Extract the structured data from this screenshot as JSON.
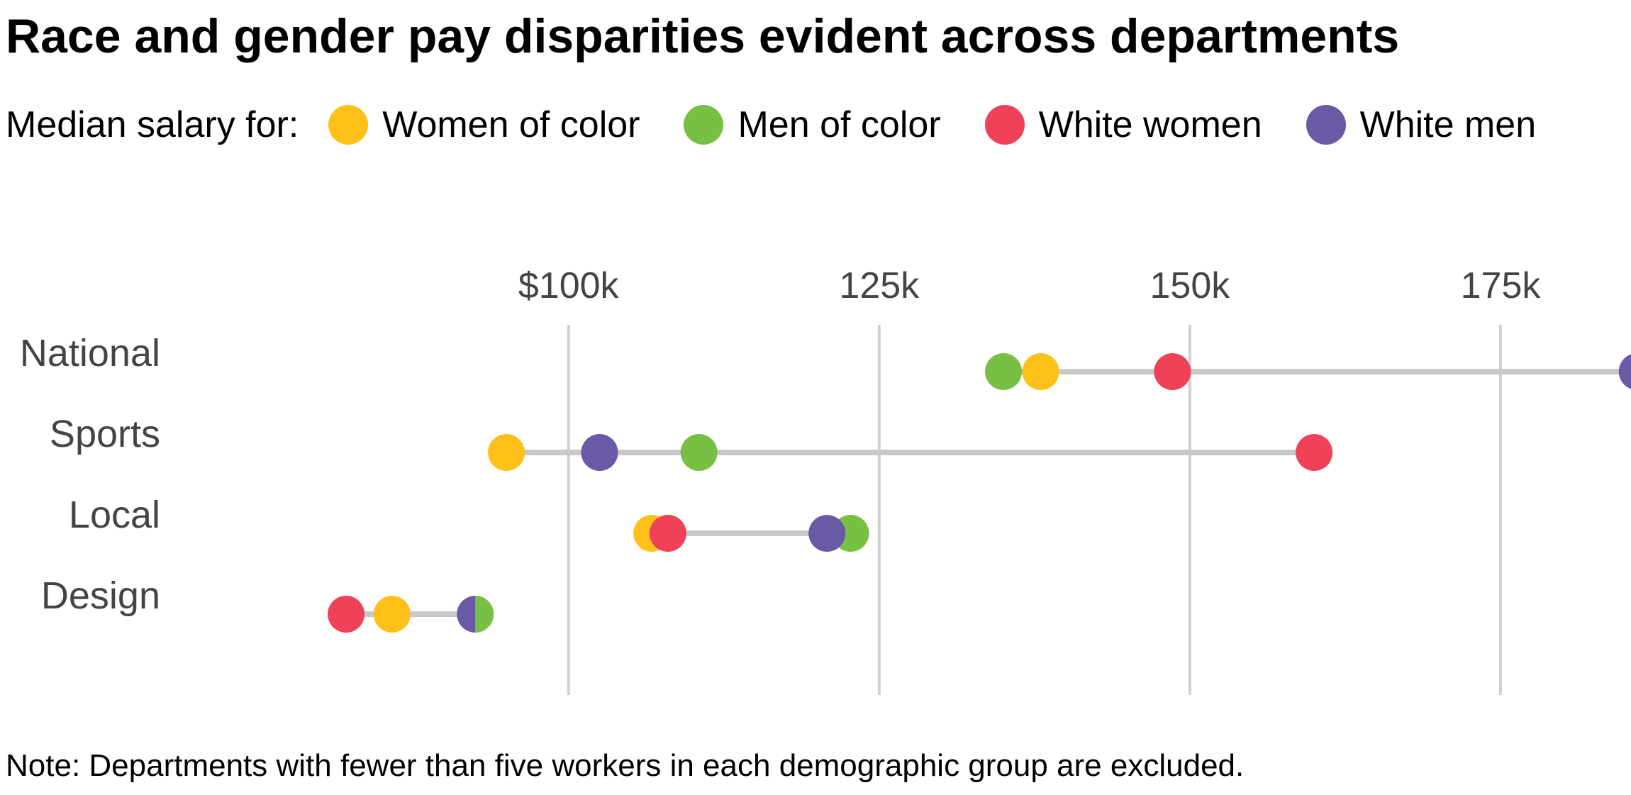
{
  "chart_data": {
    "type": "dot-plot",
    "title": "Race and gender pay disparities evident across departments",
    "legend_prefix": "Median salary for:",
    "legend_placement": "top",
    "series": [
      {
        "name": "Women of color",
        "color": "#FFC01A"
      },
      {
        "name": "Men of color",
        "color": "#77C044"
      },
      {
        "name": "White women",
        "color": "#EF4157"
      },
      {
        "name": "White men",
        "color": "#6A59A5"
      }
    ],
    "x_ticks": [
      {
        "value": 100000,
        "label": "$100k"
      },
      {
        "value": 125000,
        "label": "125k"
      },
      {
        "value": 150000,
        "label": "150k"
      },
      {
        "value": 175000,
        "label": "175k"
      }
    ],
    "xlim": [
      80500,
      185500
    ],
    "grid": true,
    "gridline_color": "#d0d0d0",
    "connector_color": "#c8c8c8",
    "categories": [
      {
        "name": "National",
        "values": {
          "Women of color": 138000,
          "Men of color": 135000,
          "White women": 148600,
          "White men": 186000
        }
      },
      {
        "name": "Sports",
        "values": {
          "Women of color": 95000,
          "Men of color": 110500,
          "White women": 160000,
          "White men": 102500
        }
      },
      {
        "name": "Local",
        "values": {
          "Women of color": 106700,
          "Men of color": 122700,
          "White women": 108000,
          "White men": 120800
        }
      },
      {
        "name": "Design",
        "values": {
          "Women of color": 85800,
          "Men of color": 92500,
          "White women": 82100,
          "White men": 92500
        }
      }
    ],
    "note": "Note: Departments with fewer than five workers in each demographic group are excluded."
  }
}
